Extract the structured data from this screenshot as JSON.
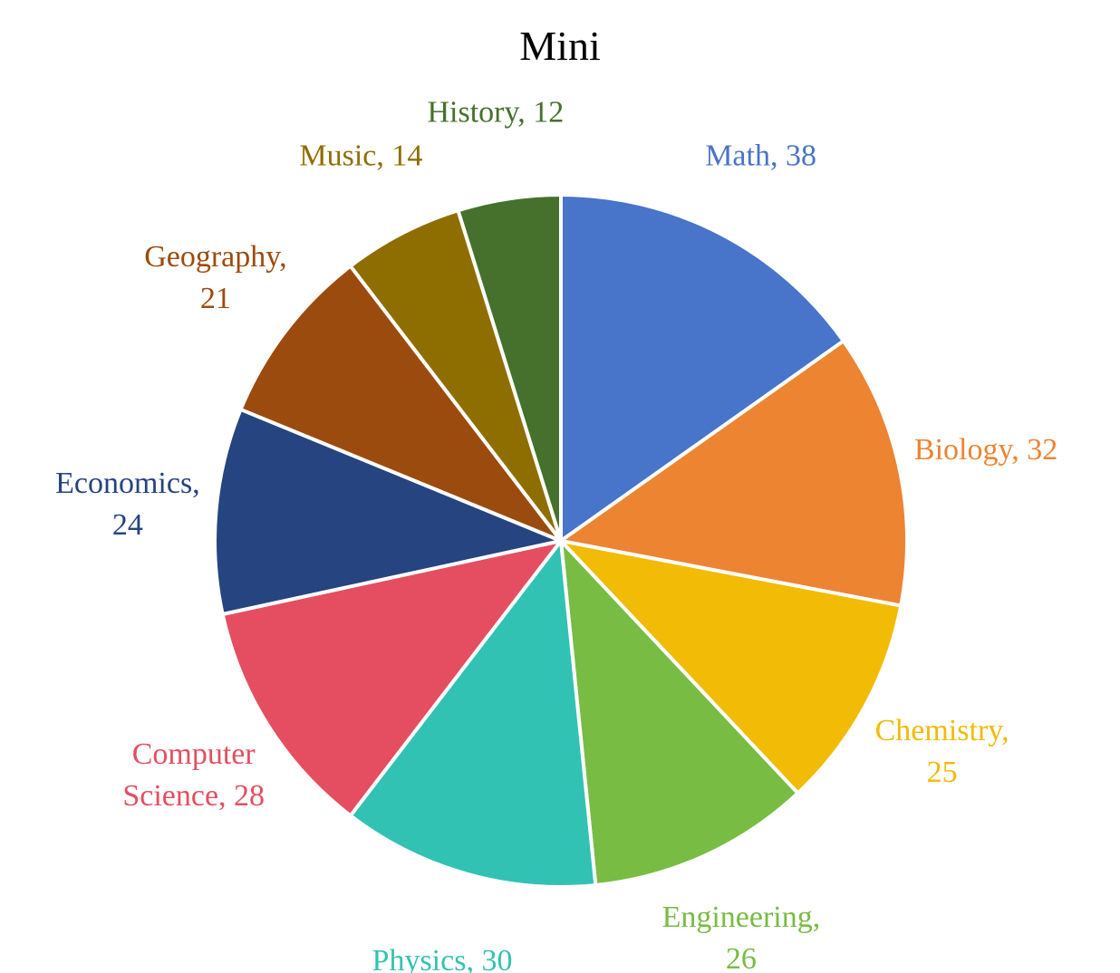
{
  "chart_data": {
    "type": "pie",
    "title": "Mini",
    "start_angle_deg": 0,
    "direction": "clockwise",
    "slices": [
      {
        "name": "Math",
        "value": 38,
        "color": "#4874C9",
        "label_lines": [
          "Math, 38"
        ]
      },
      {
        "name": "Biology",
        "value": 32,
        "color": "#ED8432",
        "label_lines": [
          "Biology, 32"
        ]
      },
      {
        "name": "Chemistry",
        "value": 25,
        "color": "#F2BB05",
        "label_lines": [
          "Chemistry,",
          "25"
        ]
      },
      {
        "name": "Engineering",
        "value": 26,
        "color": "#78BC43",
        "label_lines": [
          "Engineering,",
          "26"
        ]
      },
      {
        "name": "Physics",
        "value": 30,
        "color": "#32C2B4",
        "label_lines": [
          "Physics, 30"
        ]
      },
      {
        "name": "Computer Science",
        "value": 28,
        "color": "#E54E60",
        "label_lines": [
          "Computer",
          "Science, 28"
        ]
      },
      {
        "name": "Economics",
        "value": 24,
        "color": "#264480",
        "label_lines": [
          "Economics,",
          "24"
        ]
      },
      {
        "name": "Geography",
        "value": 21,
        "color": "#9C4B0E",
        "label_lines": [
          "Geography,",
          "21"
        ]
      },
      {
        "name": "Music",
        "value": 14,
        "color": "#8F6E01",
        "label_lines": [
          "Music, 14"
        ]
      },
      {
        "name": "History",
        "value": 12,
        "color": "#45712C",
        "label_lines": [
          "History, 12"
        ]
      }
    ]
  }
}
